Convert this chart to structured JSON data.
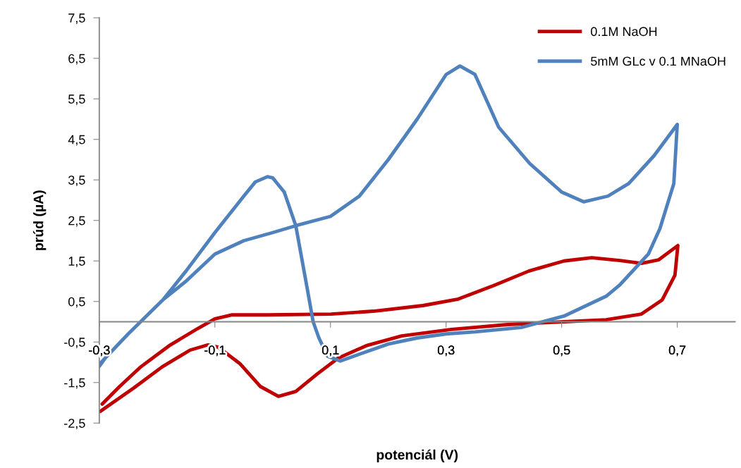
{
  "chart_data": {
    "type": "line",
    "xlabel": "potenciál (V)",
    "ylabel": "prúd (µA)",
    "xlim": [
      -0.3,
      0.8
    ],
    "ylim": [
      -2.5,
      7.5
    ],
    "xticks": [
      {
        "value": -0.3,
        "label": "-0,3"
      },
      {
        "value": -0.1,
        "label": "-0,1"
      },
      {
        "value": 0.1,
        "label": "0,1"
      },
      {
        "value": 0.3,
        "label": "0,3"
      },
      {
        "value": 0.5,
        "label": "0,5"
      },
      {
        "value": 0.7,
        "label": "0,7"
      }
    ],
    "yticks": [
      {
        "value": -2.5,
        "label": "-2,5"
      },
      {
        "value": -1.5,
        "label": "-1,5"
      },
      {
        "value": -0.5,
        "label": "-0,5"
      },
      {
        "value": 0.5,
        "label": "0,5"
      },
      {
        "value": 1.5,
        "label": "1,5"
      },
      {
        "value": 2.5,
        "label": "2,5"
      },
      {
        "value": 3.5,
        "label": "3,5"
      },
      {
        "value": 4.5,
        "label": "4,5"
      },
      {
        "value": 5.5,
        "label": "5,5"
      },
      {
        "value": 6.5,
        "label": "6,5"
      },
      {
        "value": 7.5,
        "label": "7,5"
      }
    ],
    "grid": false,
    "legend": "top right",
    "marker": "none",
    "line_style": "solid",
    "series": [
      {
        "name": "0.1M NaOH",
        "color": "#c00000",
        "x": [
          -0.295,
          -0.265,
          -0.228,
          -0.179,
          -0.13,
          -0.1,
          -0.07,
          -0.009,
          0.101,
          0.174,
          0.26,
          0.321,
          0.382,
          0.443,
          0.504,
          0.552,
          0.601,
          0.638,
          0.668,
          0.701,
          0.696,
          0.674,
          0.638,
          0.577,
          0.504,
          0.406,
          0.309,
          0.223,
          0.162,
          0.113,
          0.077,
          0.04,
          0.01,
          -0.021,
          -0.057,
          -0.094,
          -0.112,
          -0.143,
          -0.191,
          -0.24,
          -0.298
        ],
        "values": [
          -2.03,
          -1.6,
          -1.11,
          -0.59,
          -0.17,
          0.07,
          0.17,
          0.17,
          0.19,
          0.26,
          0.4,
          0.56,
          0.89,
          1.25,
          1.5,
          1.58,
          1.51,
          1.44,
          1.53,
          1.88,
          1.15,
          0.54,
          0.19,
          0.05,
          0.0,
          -0.07,
          -0.19,
          -0.35,
          -0.59,
          -0.9,
          -1.29,
          -1.72,
          -1.84,
          -1.6,
          -1.03,
          -0.63,
          -0.57,
          -0.7,
          -1.11,
          -1.63,
          -2.21
        ]
      },
      {
        "name": "5mM GLc v 0.1 MNaOH",
        "color": "#4f81bd",
        "x": [
          -0.3,
          -0.25,
          -0.19,
          -0.15,
          -0.1,
          -0.05,
          0.0,
          0.04,
          0.1,
          0.15,
          0.2,
          0.25,
          0.3,
          0.324,
          0.35,
          0.391,
          0.445,
          0.5,
          0.538,
          0.58,
          0.616,
          0.66,
          0.7,
          0.694,
          0.67,
          0.65,
          0.6,
          0.577,
          0.504,
          0.43,
          0.35,
          0.3,
          0.25,
          0.2,
          0.15,
          0.117,
          0.095,
          0.08,
          0.07,
          0.06,
          0.04,
          0.02,
          0.0,
          -0.009,
          -0.03,
          -0.05,
          -0.1,
          -0.15,
          -0.19,
          -0.25,
          -0.29,
          -0.3
        ],
        "values": [
          -1.05,
          -0.3,
          0.54,
          1.0,
          1.67,
          2.0,
          2.2,
          2.37,
          2.6,
          3.1,
          4.0,
          5.0,
          6.1,
          6.31,
          6.1,
          4.8,
          3.9,
          3.2,
          2.96,
          3.1,
          3.41,
          4.1,
          4.87,
          3.41,
          2.3,
          1.67,
          0.9,
          0.63,
          0.14,
          -0.14,
          -0.25,
          -0.3,
          -0.4,
          -0.55,
          -0.8,
          -0.97,
          -0.85,
          -0.4,
          0.0,
          0.8,
          2.37,
          3.2,
          3.55,
          3.58,
          3.45,
          3.1,
          2.2,
          1.25,
          0.54,
          -0.3,
          -0.9,
          -1.1
        ]
      }
    ]
  }
}
